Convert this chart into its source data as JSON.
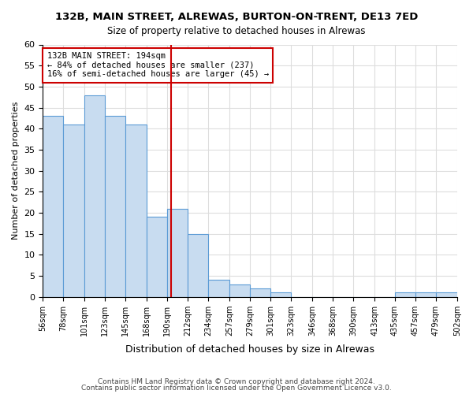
{
  "title": "132B, MAIN STREET, ALREWAS, BURTON-ON-TRENT, DE13 7ED",
  "subtitle": "Size of property relative to detached houses in Alrewas",
  "xlabel": "Distribution of detached houses by size in Alrewas",
  "ylabel": "Number of detached properties",
  "bar_edges": [
    56,
    78,
    101,
    123,
    145,
    168,
    190,
    212,
    234,
    257,
    279,
    301,
    323,
    346,
    368,
    390,
    413,
    435,
    457,
    479,
    502
  ],
  "bar_heights": [
    43,
    41,
    48,
    43,
    41,
    19,
    21,
    15,
    4,
    3,
    2,
    1,
    0,
    0,
    0,
    0,
    0,
    1,
    1,
    1
  ],
  "bar_color": "#c8dcf0",
  "bar_edge_color": "#5b9bd5",
  "reference_line_x": 194,
  "reference_line_color": "#cc0000",
  "annotation_box_text": "132B MAIN STREET: 194sqm\n← 84% of detached houses are smaller (237)\n16% of semi-detached houses are larger (45) →",
  "annotation_box_facecolor": "white",
  "annotation_box_edgecolor": "#cc0000",
  "ylim": [
    0,
    60
  ],
  "yticks": [
    0,
    5,
    10,
    15,
    20,
    25,
    30,
    35,
    40,
    45,
    50,
    55,
    60
  ],
  "tick_labels": [
    "56sqm",
    "78sqm",
    "101sqm",
    "123sqm",
    "145sqm",
    "168sqm",
    "190sqm",
    "212sqm",
    "234sqm",
    "257sqm",
    "279sqm",
    "301sqm",
    "323sqm",
    "346sqm",
    "368sqm",
    "390sqm",
    "413sqm",
    "435sqm",
    "457sqm",
    "479sqm",
    "502sqm"
  ],
  "footer_line1": "Contains HM Land Registry data © Crown copyright and database right 2024.",
  "footer_line2": "Contains public sector information licensed under the Open Government Licence v3.0.",
  "grid_color": "#dddddd",
  "background_color": "#ffffff"
}
